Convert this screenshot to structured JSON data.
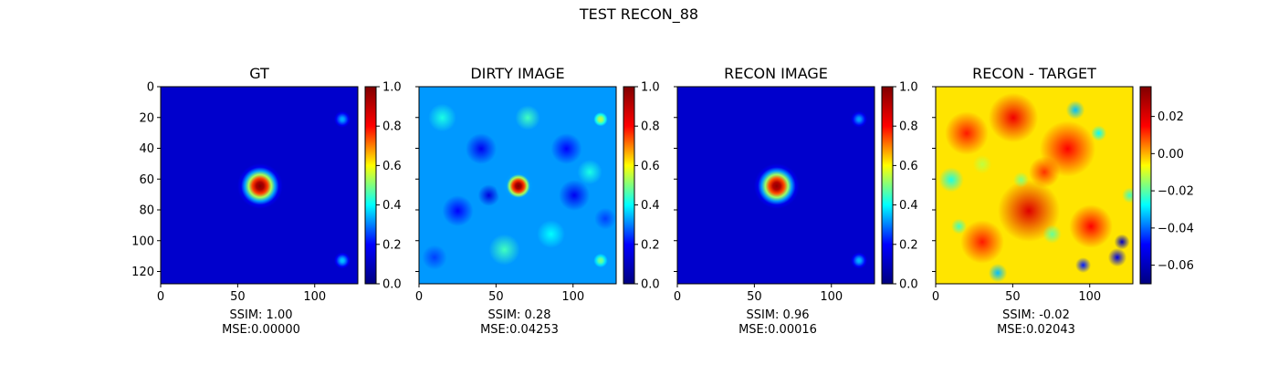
{
  "figure": {
    "title": "TEST RECON_88"
  },
  "colormap": {
    "name": "jet",
    "stops": [
      "#000080",
      "#0000ff",
      "#00ffff",
      "#ffff00",
      "#ff0000",
      "#800000"
    ]
  },
  "chart_data": [
    {
      "type": "heatmap",
      "title": "GT",
      "x_ticks": [
        "0",
        "50",
        "100"
      ],
      "y_ticks": [
        "0",
        "20",
        "40",
        "60",
        "80",
        "100",
        "120"
      ],
      "xlim": [
        0,
        127
      ],
      "ylim": [
        0,
        127
      ],
      "colorbar": {
        "ticks": [
          "0.0",
          "0.2",
          "0.4",
          "0.6",
          "0.8",
          "1.0"
        ],
        "range": [
          0.0,
          1.0
        ]
      },
      "caption": [
        "SSIM: 1.00",
        "MSE:0.00000"
      ],
      "sources": [
        {
          "x": 64,
          "y": 64,
          "amplitude": 1.0,
          "sigma": 6.5
        },
        {
          "x": 117,
          "y": 21,
          "amplitude": 0.34,
          "sigma": 3.5
        },
        {
          "x": 117,
          "y": 112,
          "amplitude": 0.36,
          "sigma": 3.5
        }
      ]
    },
    {
      "type": "heatmap",
      "title": "DIRTY IMAGE",
      "x_ticks": [
        "0",
        "50",
        "100"
      ],
      "y_ticks": [],
      "xlim": [
        0,
        127
      ],
      "ylim": [
        0,
        127
      ],
      "colorbar": {
        "ticks": [
          "0.0",
          "0.2",
          "0.4",
          "0.6",
          "0.8",
          "1.0"
        ],
        "range": [
          0.0,
          1.0
        ]
      },
      "caption": [
        "SSIM: 0.28",
        "MSE:0.04253"
      ],
      "sources": [
        {
          "x": 64,
          "y": 64,
          "amplitude": 1.0,
          "sigma": 5.0
        },
        {
          "x": 117,
          "y": 21,
          "amplitude": 0.55,
          "sigma": 4.0
        },
        {
          "x": 117,
          "y": 112,
          "amplitude": 0.5,
          "sigma": 4.0
        }
      ],
      "background_level": 0.32
    },
    {
      "type": "heatmap",
      "title": "RECON IMAGE",
      "x_ticks": [
        "0",
        "50",
        "100"
      ],
      "y_ticks": [],
      "xlim": [
        0,
        127
      ],
      "ylim": [
        0,
        127
      ],
      "colorbar": {
        "ticks": [
          "0.0",
          "0.2",
          "0.4",
          "0.6",
          "0.8",
          "1.0"
        ],
        "range": [
          0.0,
          1.0
        ]
      },
      "caption": [
        "SSIM: 0.96",
        "MSE:0.00016"
      ],
      "sources": [
        {
          "x": 64,
          "y": 64,
          "amplitude": 0.98,
          "sigma": 6.5
        },
        {
          "x": 117,
          "y": 21,
          "amplitude": 0.33,
          "sigma": 3.5
        },
        {
          "x": 117,
          "y": 112,
          "amplitude": 0.35,
          "sigma": 3.5
        }
      ]
    },
    {
      "type": "heatmap",
      "title": "RECON - TARGET",
      "x_ticks": [
        "0",
        "50",
        "100"
      ],
      "y_ticks": [],
      "xlim": [
        0,
        127
      ],
      "ylim": [
        0,
        127
      ],
      "colorbar": {
        "ticks": [
          "0.02",
          "0.00",
          "−0.02",
          "−0.04",
          "−0.06"
        ],
        "range": [
          -0.07,
          0.036
        ]
      },
      "caption": [
        "SSIM: -0.02",
        "MSE:0.02043"
      ],
      "background_level": 0.012
    }
  ]
}
